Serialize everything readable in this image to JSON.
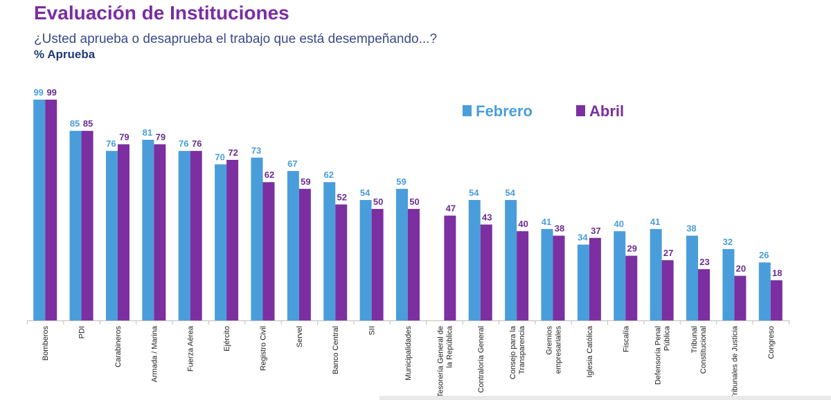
{
  "header": {
    "title": "Evaluación de Instituciones",
    "subtitle": "¿Usted aprueba o desaprueba el trabajo que está desempeñando...?",
    "ylabel": "% Aprueba"
  },
  "chart_data": {
    "type": "bar",
    "title": "Evaluación de Instituciones",
    "subtitle": "¿Usted aprueba o desaprueba el trabajo que está desempeñando...?",
    "ylabel": "% Aprueba",
    "xlabel": "",
    "ylim": [
      0,
      100
    ],
    "grid": false,
    "legend_position": "top-right",
    "categories": [
      [
        "Bomberos"
      ],
      [
        "PDI"
      ],
      [
        "Carabineros"
      ],
      [
        "Armada / Marina"
      ],
      [
        "Fuerza Aérea"
      ],
      [
        "Ejército"
      ],
      [
        "Registro Civil"
      ],
      [
        "Servel"
      ],
      [
        "Banco Central"
      ],
      [
        "SII"
      ],
      [
        "Municipalidades"
      ],
      [
        "Tesorería General de",
        "la República"
      ],
      [
        "Contraloría General"
      ],
      [
        "Consejo para la",
        "Transparencia"
      ],
      [
        "Gremios",
        "empresariales"
      ],
      [
        "Iglesia Católica"
      ],
      [
        "Fiscalía"
      ],
      [
        "Defensoría Penal",
        "Pública"
      ],
      [
        "Tribunal",
        "Constitucional"
      ],
      [
        "Tribunales de Justicia"
      ],
      [
        "Congreso"
      ]
    ],
    "series": [
      {
        "name": "Febrero",
        "color": "#4a9ddb",
        "values": [
          99,
          85,
          76,
          81,
          76,
          70,
          73,
          67,
          62,
          54,
          59,
          null,
          54,
          54,
          41,
          34,
          40,
          41,
          38,
          32,
          26
        ]
      },
      {
        "name": "Abril",
        "color": "#7b2fa0",
        "values": [
          99,
          85,
          79,
          79,
          76,
          72,
          62,
          59,
          52,
          50,
          50,
          47,
          43,
          40,
          38,
          37,
          29,
          27,
          23,
          20,
          18
        ]
      }
    ]
  }
}
